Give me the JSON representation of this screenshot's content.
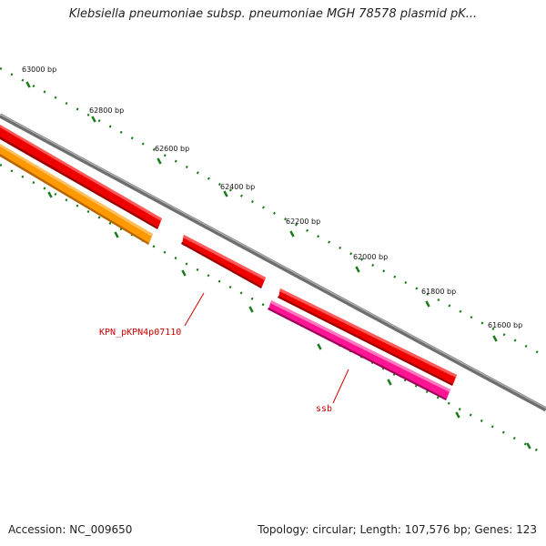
{
  "title": "Klebsiella pneumoniae subsp. pneumoniae MGH 78578 plasmid pK...",
  "ticks": [
    {
      "label": "63000 bp"
    },
    {
      "label": "62800 bp"
    },
    {
      "label": "62600 bp"
    },
    {
      "label": "62400 bp"
    },
    {
      "label": "62200 bp"
    },
    {
      "label": "62000 bp"
    },
    {
      "label": "61800 bp"
    },
    {
      "label": "61600 bp"
    }
  ],
  "genes": [
    {
      "name": "KPN_pKPN4p07110",
      "color": "#cc0000"
    },
    {
      "name": "ssb",
      "color": "#cc0000"
    }
  ],
  "colors": {
    "forward_gene": "#ee0000",
    "reverse_gene": "#ff8c00",
    "ssb_gene": "#ff1493",
    "backbone": "#7a7a7a",
    "ticks": "#1a7a1a"
  },
  "footer": {
    "accession": "Accession: NC_009650",
    "summary": "Topology: circular; Length: 107,576 bp; Genes: 123"
  }
}
